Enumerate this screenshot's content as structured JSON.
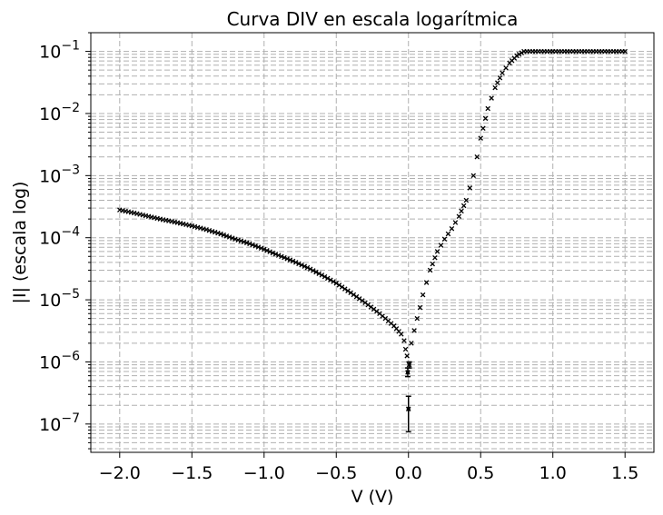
{
  "chart_data": {
    "type": "scatter",
    "title": "Curva DIV en escala logarítmica",
    "xlabel": "V (V)",
    "ylabel": "|I| (escala log)",
    "xlim": [
      -2.2,
      1.7
    ],
    "ylim": [
      3.5e-08,
      0.2
    ],
    "yscale": "log",
    "grid": true,
    "grid_style": "dashed",
    "marker": "x",
    "error_bars": true,
    "x_ticks": [
      {
        "value": -2.0,
        "label": "−2.0"
      },
      {
        "value": -1.5,
        "label": "−1.5"
      },
      {
        "value": -1.0,
        "label": "−1.0"
      },
      {
        "value": -0.5,
        "label": "−0.5"
      },
      {
        "value": 0.0,
        "label": "0.0"
      },
      {
        "value": 0.5,
        "label": "0.5"
      },
      {
        "value": 1.0,
        "label": "1.0"
      },
      {
        "value": 1.5,
        "label": "1.5"
      }
    ],
    "y_ticks": [
      {
        "exp": -7,
        "base": "10",
        "sup": "−7"
      },
      {
        "exp": -6,
        "base": "10",
        "sup": "−6"
      },
      {
        "exp": -5,
        "base": "10",
        "sup": "−5"
      },
      {
        "exp": -4,
        "base": "10",
        "sup": "−4"
      },
      {
        "exp": -3,
        "base": "10",
        "sup": "−3"
      },
      {
        "exp": -2,
        "base": "10",
        "sup": "−2"
      },
      {
        "exp": -1,
        "base": "10",
        "sup": "−1"
      }
    ],
    "series": [
      {
        "color": "#000000",
        "points": [
          {
            "x": -2.0,
            "y": 0.00028
          },
          {
            "x": -1.9,
            "y": 0.00025
          },
          {
            "x": -1.8,
            "y": 0.00022
          },
          {
            "x": -1.7,
            "y": 0.000195
          },
          {
            "x": -1.6,
            "y": 0.000175
          },
          {
            "x": -1.5,
            "y": 0.000155
          },
          {
            "x": -1.4,
            "y": 0.000135
          },
          {
            "x": -1.3,
            "y": 0.000115
          },
          {
            "x": -1.2,
            "y": 9.5e-05
          },
          {
            "x": -1.1,
            "y": 8e-05
          },
          {
            "x": -1.0,
            "y": 6.5e-05
          },
          {
            "x": -0.9,
            "y": 5.2e-05
          },
          {
            "x": -0.8,
            "y": 4.2e-05
          },
          {
            "x": -0.7,
            "y": 3.3e-05
          },
          {
            "x": -0.6,
            "y": 2.5e-05
          },
          {
            "x": -0.5,
            "y": 1.85e-05
          },
          {
            "x": -0.4,
            "y": 1.3e-05
          },
          {
            "x": -0.3,
            "y": 9e-06
          },
          {
            "x": -0.2,
            "y": 6e-06
          },
          {
            "x": -0.1,
            "y": 3.8e-06
          },
          {
            "x": -0.05,
            "y": 2.8e-06
          },
          {
            "x": -0.03,
            "y": 2.2e-06
          },
          {
            "x": -0.02,
            "y": 1.6e-06
          },
          {
            "x": -0.01,
            "y": 1.25e-06
          },
          {
            "x": -0.005,
            "y": 6.8e-07
          },
          {
            "x": 0.0,
            "y": 1.75e-07
          },
          {
            "x": 0.005,
            "y": 9e-07
          },
          {
            "x": 0.02,
            "y": 2e-06
          },
          {
            "x": 0.04,
            "y": 3.2e-06
          },
          {
            "x": 0.06,
            "y": 5e-06
          },
          {
            "x": 0.08,
            "y": 7.5e-06
          },
          {
            "x": 0.1,
            "y": 1.2e-05
          },
          {
            "x": 0.15,
            "y": 3e-05
          },
          {
            "x": 0.2,
            "y": 6e-05
          },
          {
            "x": 0.25,
            "y": 9.5e-05
          },
          {
            "x": 0.3,
            "y": 0.00014
          },
          {
            "x": 0.35,
            "y": 0.00022
          },
          {
            "x": 0.4,
            "y": 0.0004
          },
          {
            "x": 0.45,
            "y": 0.001
          },
          {
            "x": 0.5,
            "y": 0.004
          },
          {
            "x": 0.55,
            "y": 0.012
          },
          {
            "x": 0.6,
            "y": 0.026
          },
          {
            "x": 0.65,
            "y": 0.045
          },
          {
            "x": 0.7,
            "y": 0.065
          },
          {
            "x": 0.75,
            "y": 0.085
          },
          {
            "x": 0.8,
            "y": 0.1
          },
          {
            "x": 0.9,
            "y": 0.1
          },
          {
            "x": 1.0,
            "y": 0.1
          },
          {
            "x": 1.1,
            "y": 0.1
          },
          {
            "x": 1.2,
            "y": 0.1
          },
          {
            "x": 1.3,
            "y": 0.1
          },
          {
            "x": 1.4,
            "y": 0.1
          },
          {
            "x": 1.5,
            "y": 0.1
          }
        ],
        "error_points": [
          {
            "x": 0.0,
            "y": 1.75e-07,
            "low": 7.5e-08,
            "high": 2.8e-07
          },
          {
            "x": -0.005,
            "y": 6.8e-07,
            "low": 5.8e-07,
            "high": 8e-07
          },
          {
            "x": 0.005,
            "y": 9e-07,
            "low": 8e-07,
            "high": 1e-06
          }
        ]
      }
    ]
  }
}
